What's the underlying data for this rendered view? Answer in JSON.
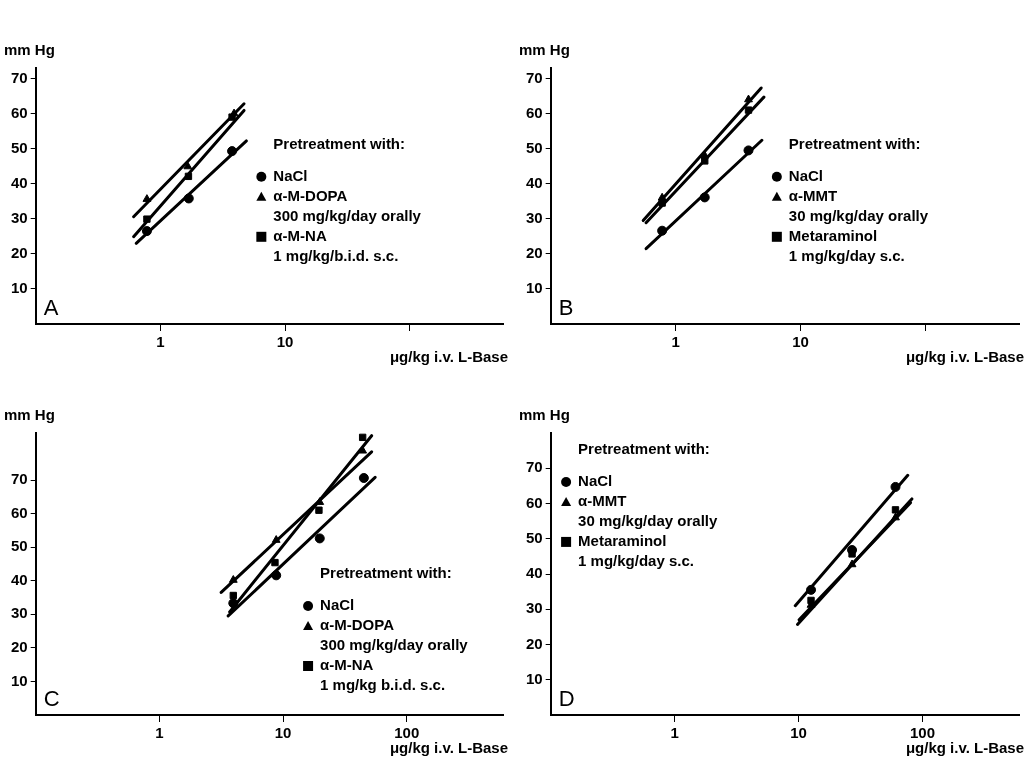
{
  "chart_data": [
    {
      "type": "scatter",
      "xlabel": "μg/kg i.v. L-Base",
      "ylabel": "mm Hg",
      "legend_title": "Pretreatment with:",
      "legend": "right",
      "log": "x",
      "grid": false,
      "annotations": [
        "A"
      ],
      "xlim": [
        0.1,
        560
      ],
      "xticks": [
        1,
        10,
        {
          "value": 100,
          "label": null
        }
      ],
      "ylim": [
        0,
        73
      ],
      "yticks": [
        10,
        20,
        30,
        40,
        50,
        60,
        70
      ],
      "series": [
        {
          "type": "scatter",
          "name": "NaCl",
          "color": "#000000",
          "marker": "circle",
          "x": [
            0.78,
            1.69,
            3.76
          ],
          "values": [
            26.5,
            35.8,
            49.3
          ]
        },
        {
          "type": "scatter",
          "name": "α-M-DOPA\n300 mg/kg/day orally",
          "color": "#000000",
          "marker": "triangle",
          "x": [
            0.78,
            1.66,
            3.9
          ],
          "values": [
            35.6,
            44.9,
            60
          ]
        },
        {
          "type": "scatter",
          "name": "α-M-NA\n1 mg/kg/b.i.d. s.c.",
          "color": "#000000",
          "marker": "square",
          "x": [
            0.78,
            1.68,
            3.76
          ],
          "values": [
            29.9,
            42.1,
            59
          ]
        },
        {
          "type": "line",
          "color": "#000000",
          "marker": "none",
          "x": [
            0.61,
            4.69
          ],
          "values": [
            30.6,
            62.8
          ]
        },
        {
          "type": "line",
          "color": "#000000",
          "marker": "none",
          "x": [
            0.61,
            4.69
          ],
          "values": [
            24.9,
            60.9
          ]
        },
        {
          "type": "line",
          "color": "#000000",
          "marker": "none",
          "x": [
            0.64,
            4.9
          ],
          "values": [
            23,
            52.2
          ]
        }
      ]
    },
    {
      "type": "scatter",
      "xlabel": "μg/kg i.v. L-Base",
      "ylabel": "mm Hg",
      "legend_title": "Pretreatment with:",
      "legend": "right",
      "log": "x",
      "grid": false,
      "annotations": [
        "B"
      ],
      "xlim": [
        0.1,
        560
      ],
      "xticks": [
        1,
        10,
        {
          "value": 100,
          "label": null
        }
      ],
      "ylim": [
        0,
        73
      ],
      "yticks": [
        10,
        20,
        30,
        40,
        50,
        60,
        70
      ],
      "series": [
        {
          "type": "scatter",
          "name": "NaCl",
          "color": "#000000",
          "marker": "circle",
          "x": [
            0.78,
            1.71,
            3.83
          ],
          "values": [
            26.6,
            36.1,
            49.5
          ]
        },
        {
          "type": "scatter",
          "name": "α-MMT\n30 mg/kg/day orally",
          "color": "#000000",
          "marker": "triangle",
          "x": [
            0.78,
            1.71,
            3.83
          ],
          "values": [
            36,
            48,
            64
          ]
        },
        {
          "type": "scatter",
          "name": "Metaraminol\n1 mg/kg/day s.c.",
          "color": "#000000",
          "marker": "square",
          "x": [
            0.78,
            1.71,
            3.83
          ],
          "values": [
            34.5,
            46.5,
            61
          ]
        },
        {
          "type": "line",
          "color": "#000000",
          "marker": "none",
          "x": [
            0.55,
            4.84
          ],
          "values": [
            29.5,
            67.3
          ]
        },
        {
          "type": "line",
          "color": "#000000",
          "marker": "none",
          "x": [
            0.58,
            5.09
          ],
          "values": [
            28.9,
            64.7
          ]
        },
        {
          "type": "line",
          "color": "#000000",
          "marker": "none",
          "x": [
            0.58,
            4.9
          ],
          "values": [
            21.5,
            52.4
          ]
        }
      ]
    },
    {
      "type": "scatter",
      "xlabel": "μg/kg i.v. L-Base",
      "ylabel": "mm Hg",
      "legend_title": "Pretreatment with:",
      "legend": "bottom right",
      "log": "x",
      "grid": false,
      "annotations": [
        "C"
      ],
      "xlim": [
        0.1,
        600
      ],
      "xticks": [
        1,
        10,
        100
      ],
      "ylim": [
        0,
        84
      ],
      "yticks": [
        10,
        20,
        30,
        40,
        50,
        60,
        70
      ],
      "series": [
        {
          "type": "scatter",
          "name": "NaCl",
          "color": "#000000",
          "marker": "circle",
          "x": [
            3.96,
            8.8,
            19.8,
            45
          ],
          "values": [
            33.3,
            41.6,
            52.6,
            70.6
          ]
        },
        {
          "type": "scatter",
          "name": "α-M-DOPA\n300 mg/kg/day orally",
          "color": "#000000",
          "marker": "triangle",
          "x": [
            3.96,
            8.8,
            19.8,
            44
          ],
          "values": [
            40.2,
            52.1,
            63.4,
            78.7
          ]
        },
        {
          "type": "scatter",
          "name": "α-M-NA\n1 mg/kg b.i.d. s.c.",
          "color": "#000000",
          "marker": "square",
          "x": [
            3.96,
            8.6,
            19.5,
            44
          ],
          "values": [
            35.6,
            45.4,
            61,
            82.7
          ]
        },
        {
          "type": "line",
          "color": "#000000",
          "marker": "none",
          "x": [
            3.16,
            52
          ],
          "values": [
            36.5,
            78.4
          ]
        },
        {
          "type": "line",
          "color": "#000000",
          "marker": "none",
          "x": [
            3.7,
            52
          ],
          "values": [
            30.7,
            83.2
          ]
        },
        {
          "type": "line",
          "color": "#000000",
          "marker": "none",
          "x": [
            3.6,
            55.5
          ],
          "values": [
            29.5,
            70.8
          ]
        }
      ]
    },
    {
      "type": "scatter",
      "xlabel": "μg/kg i.v. L-Base",
      "ylabel": "mm Hg",
      "legend_title": "Pretreatment with:",
      "legend": "top left",
      "log": "x",
      "grid": false,
      "annotations": [
        "D"
      ],
      "xlim": [
        0.1,
        600
      ],
      "xticks": [
        1,
        10,
        100
      ],
      "ylim": [
        0,
        80
      ],
      "yticks": [
        10,
        20,
        30,
        40,
        50,
        60,
        70
      ],
      "series": [
        {
          "type": "scatter",
          "name": "NaCl",
          "color": "#000000",
          "marker": "circle",
          "x": [
            12.6,
            27,
            60.5
          ],
          "values": [
            35.5,
            46.8,
            64.7
          ]
        },
        {
          "type": "scatter",
          "name": "α-MMT\n30 mg/kg/day orally",
          "color": "#000000",
          "marker": "triangle",
          "x": [
            12.6,
            27,
            60.5
          ],
          "values": [
            31.2,
            42.7,
            56
          ]
        },
        {
          "type": "scatter",
          "name": "Metaraminol\n1 mg/kg/day s.c.",
          "color": "#000000",
          "marker": "square",
          "x": [
            12.6,
            27,
            60.5
          ],
          "values": [
            32.5,
            45.7,
            58.2
          ]
        },
        {
          "type": "line",
          "color": "#000000",
          "marker": "none",
          "x": [
            9.4,
            76
          ],
          "values": [
            31,
            68
          ]
        },
        {
          "type": "line",
          "color": "#000000",
          "marker": "none",
          "x": [
            9.8,
            82
          ],
          "values": [
            25.7,
            61.3
          ]
        },
        {
          "type": "line",
          "color": "#000000",
          "marker": "none",
          "x": [
            10.1,
            80
          ],
          "values": [
            27,
            60.2
          ]
        }
      ]
    }
  ]
}
